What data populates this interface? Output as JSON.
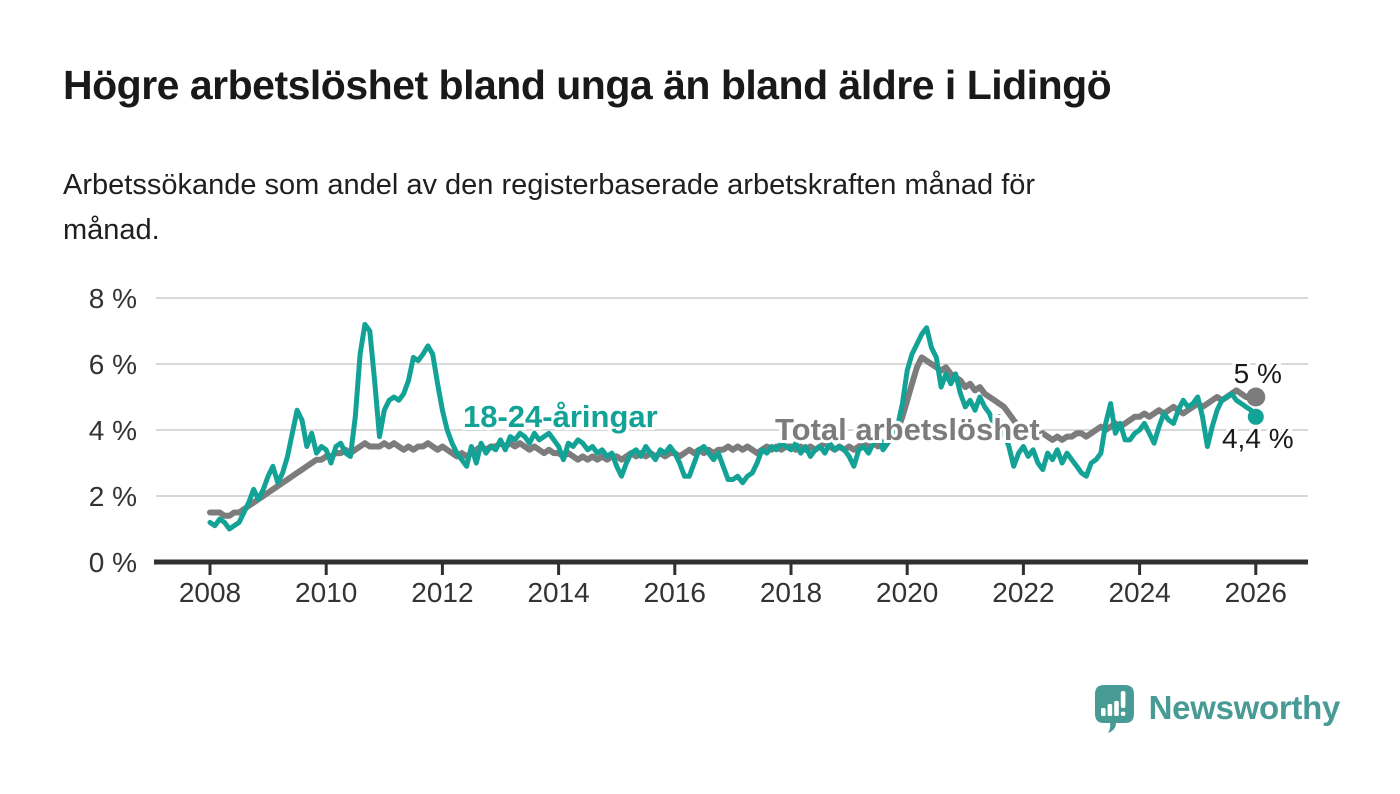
{
  "header": {
    "title": "Högre arbetslöshet bland unga än bland äldre i Lidingö",
    "subtitle_lines": [
      "Arbetssökande som andel av den registerbaserade arbetskraften månad för",
      "månad."
    ]
  },
  "chart_data": {
    "type": "line",
    "title": "Högre arbetslöshet bland unga än bland äldre i Lidingö",
    "subtitle": "Arbetssökande som andel av den registerbaserade arbetskraften månad för månad.",
    "xlabel": "",
    "ylabel": "",
    "x_start_year": 2008,
    "x_step_months": 1,
    "x_end": "2026-01",
    "ylim": [
      0,
      8
    ],
    "yticks": [
      0,
      2,
      4,
      6,
      8
    ],
    "ytick_labels": [
      "0 %",
      "2 %",
      "4 %",
      "6 %",
      "8 %"
    ],
    "xticks": [
      2008,
      2010,
      2012,
      2014,
      2016,
      2018,
      2020,
      2022,
      2024,
      2026
    ],
    "xtick_labels": [
      "2008",
      "2010",
      "2012",
      "2014",
      "2016",
      "2018",
      "2020",
      "2022",
      "2024",
      "2026"
    ],
    "grid": "horizontal",
    "grid_color": "#d9d9d9",
    "axis_color": "#303030",
    "tick_text_color": "#333333",
    "end_label_color": "#1a1a1a",
    "legend_position": "inline-labels",
    "series": [
      {
        "name": "18-24-åringar",
        "color": "#13a296",
        "end_value": 4.4,
        "end_label": "4,4 %",
        "values": [
          1.2,
          1.1,
          1.3,
          1.2,
          1.0,
          1.1,
          1.2,
          1.5,
          1.8,
          2.2,
          1.9,
          2.2,
          2.6,
          2.9,
          2.4,
          2.7,
          3.2,
          3.9,
          4.6,
          4.3,
          3.5,
          3.9,
          3.3,
          3.5,
          3.4,
          3.0,
          3.5,
          3.6,
          3.3,
          3.2,
          4.4,
          6.3,
          7.2,
          7.0,
          5.5,
          3.8,
          4.6,
          4.9,
          5.0,
          4.9,
          5.1,
          5.5,
          6.2,
          6.1,
          6.3,
          6.55,
          6.3,
          5.4,
          4.6,
          4.0,
          3.6,
          3.3,
          3.1,
          2.9,
          3.5,
          3.0,
          3.6,
          3.3,
          3.5,
          3.4,
          3.7,
          3.4,
          3.8,
          3.7,
          3.9,
          3.8,
          3.6,
          3.9,
          3.7,
          3.8,
          3.9,
          3.7,
          3.5,
          3.1,
          3.6,
          3.5,
          3.7,
          3.6,
          3.4,
          3.5,
          3.3,
          3.4,
          3.2,
          3.3,
          2.9,
          2.6,
          3.0,
          3.3,
          3.4,
          3.2,
          3.5,
          3.3,
          3.1,
          3.4,
          3.3,
          3.5,
          3.3,
          3.0,
          2.6,
          2.6,
          3.0,
          3.4,
          3.5,
          3.3,
          3.1,
          3.3,
          2.9,
          2.5,
          2.5,
          2.6,
          2.4,
          2.6,
          2.7,
          3.0,
          3.4,
          3.3,
          3.5,
          3.4,
          3.6,
          3.5,
          3.4,
          3.6,
          3.3,
          3.5,
          3.2,
          3.4,
          3.5,
          3.3,
          3.6,
          3.4,
          3.5,
          3.4,
          3.2,
          2.9,
          3.4,
          3.5,
          3.3,
          3.6,
          3.9,
          3.4,
          3.6,
          3.8,
          4.1,
          4.8,
          5.8,
          6.3,
          6.6,
          6.9,
          7.1,
          6.5,
          6.2,
          5.3,
          5.7,
          5.4,
          5.7,
          5.1,
          4.7,
          4.9,
          4.6,
          5.0,
          4.7,
          4.5,
          4.1,
          4.4,
          3.9,
          3.5,
          2.9,
          3.3,
          3.5,
          3.2,
          3.4,
          3.0,
          2.8,
          3.3,
          3.1,
          3.4,
          3.0,
          3.3,
          3.1,
          2.9,
          2.7,
          2.6,
          3.0,
          3.1,
          3.3,
          4.2,
          4.8,
          3.9,
          4.2,
          3.7,
          3.7,
          3.9,
          4.0,
          4.2,
          3.9,
          3.6,
          4.1,
          4.5,
          4.3,
          4.2,
          4.6,
          4.9,
          4.7,
          4.8,
          5.0,
          4.4,
          3.5,
          4.1,
          4.6,
          4.9,
          5.0,
          5.1,
          4.9,
          4.8,
          4.7,
          4.6,
          4.4
        ]
      },
      {
        "name": "Total arbetslöshet",
        "color": "#7c7c7c",
        "end_value": 5.0,
        "end_label": "5 %",
        "values": [
          1.5,
          1.5,
          1.5,
          1.4,
          1.4,
          1.5,
          1.5,
          1.6,
          1.7,
          1.8,
          1.9,
          2.0,
          2.1,
          2.2,
          2.3,
          2.4,
          2.5,
          2.6,
          2.7,
          2.8,
          2.9,
          3.0,
          3.1,
          3.1,
          3.2,
          3.2,
          3.3,
          3.3,
          3.4,
          3.3,
          3.4,
          3.5,
          3.6,
          3.5,
          3.5,
          3.5,
          3.6,
          3.5,
          3.6,
          3.5,
          3.4,
          3.5,
          3.4,
          3.5,
          3.5,
          3.6,
          3.5,
          3.4,
          3.5,
          3.4,
          3.3,
          3.2,
          3.3,
          3.2,
          3.3,
          3.4,
          3.5,
          3.4,
          3.5,
          3.5,
          3.6,
          3.5,
          3.6,
          3.5,
          3.6,
          3.5,
          3.4,
          3.5,
          3.4,
          3.3,
          3.4,
          3.3,
          3.3,
          3.2,
          3.3,
          3.2,
          3.1,
          3.2,
          3.1,
          3.2,
          3.1,
          3.2,
          3.1,
          3.2,
          3.2,
          3.1,
          3.2,
          3.3,
          3.2,
          3.3,
          3.2,
          3.3,
          3.2,
          3.3,
          3.2,
          3.3,
          3.3,
          3.2,
          3.3,
          3.4,
          3.3,
          3.4,
          3.3,
          3.4,
          3.3,
          3.4,
          3.4,
          3.5,
          3.4,
          3.5,
          3.4,
          3.5,
          3.4,
          3.3,
          3.4,
          3.5,
          3.4,
          3.5,
          3.4,
          3.5,
          3.5,
          3.4,
          3.5,
          3.4,
          3.5,
          3.4,
          3.5,
          3.6,
          3.5,
          3.4,
          3.5,
          3.4,
          3.5,
          3.4,
          3.5,
          3.6,
          3.5,
          3.6,
          3.5,
          3.6,
          3.7,
          3.8,
          4.0,
          4.4,
          4.9,
          5.4,
          5.9,
          6.2,
          6.1,
          6.0,
          5.9,
          5.8,
          5.9,
          5.7,
          5.6,
          5.5,
          5.3,
          5.4,
          5.2,
          5.3,
          5.1,
          5.0,
          4.9,
          4.8,
          4.7,
          4.5,
          4.3,
          4.1,
          4.0,
          3.9,
          3.9,
          3.8,
          3.9,
          3.8,
          3.7,
          3.8,
          3.7,
          3.8,
          3.8,
          3.9,
          3.9,
          3.8,
          3.9,
          4.0,
          4.1,
          4.0,
          4.1,
          4.2,
          4.1,
          4.2,
          4.3,
          4.4,
          4.4,
          4.5,
          4.4,
          4.5,
          4.6,
          4.5,
          4.6,
          4.7,
          4.6,
          4.5,
          4.6,
          4.7,
          4.8,
          4.7,
          4.8,
          4.9,
          5.0,
          4.9,
          5.0,
          5.1,
          5.2,
          5.1,
          5.0,
          5.0,
          5.0
        ]
      }
    ]
  },
  "footer": {
    "brand": "Newsworthy",
    "brand_color": "#479b94",
    "logo_icon": "speech-bubble-bar-chart-icon"
  }
}
